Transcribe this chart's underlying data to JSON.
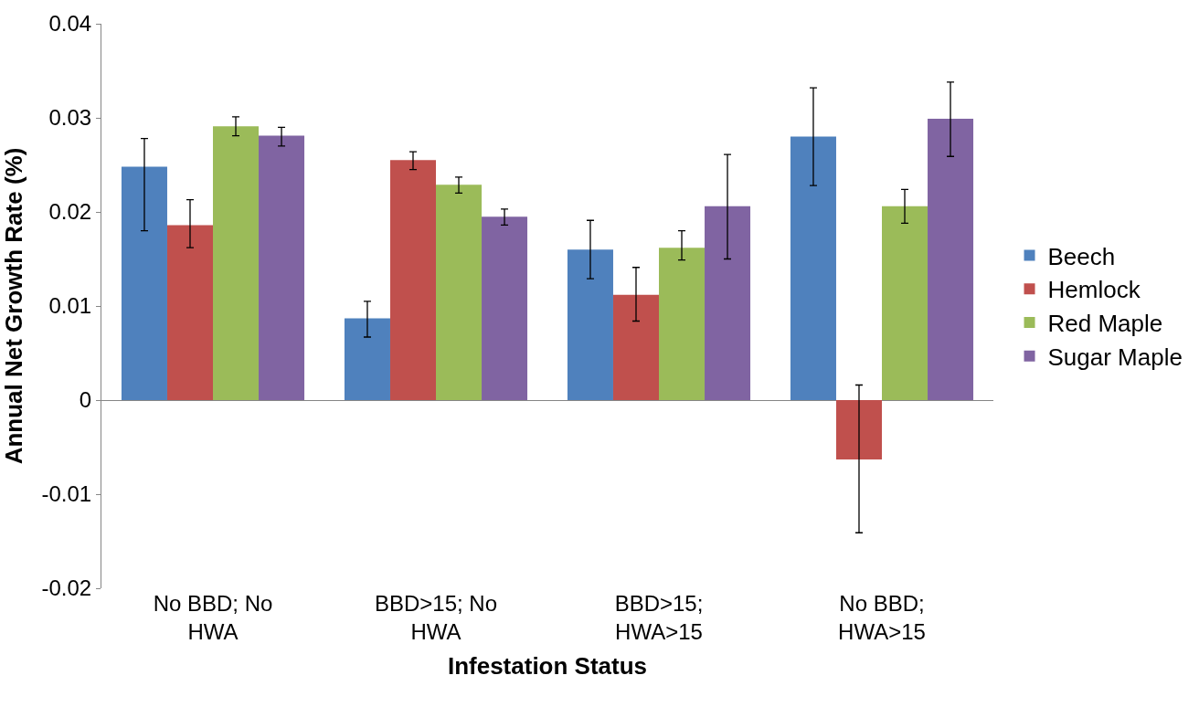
{
  "chart_data": {
    "type": "bar",
    "xlabel": "Infestation Status",
    "ylabel": "Annual Net Growth Rate (%)",
    "categories": [
      "No BBD; No\nHWA",
      "BBD>15; No\nHWA",
      "BBD>15;\nHWA>15",
      "No BBD;\nHWA>15"
    ],
    "series": [
      {
        "name": "Beech",
        "color": "#4f81bd",
        "values": [
          0.0248,
          0.0087,
          0.016,
          0.028
        ],
        "errors": [
          [
            0.018,
            0.0278
          ],
          [
            0.0067,
            0.0105
          ],
          [
            0.0129,
            0.0191
          ],
          [
            0.0228,
            0.0332
          ]
        ]
      },
      {
        "name": "Hemlock",
        "color": "#c0504d",
        "values": [
          0.0186,
          0.0255,
          0.0112,
          -0.0063
        ],
        "errors": [
          [
            0.0162,
            0.0213
          ],
          [
            0.0245,
            0.0264
          ],
          [
            0.0084,
            0.0141
          ],
          [
            -0.0141,
            0.0016
          ]
        ]
      },
      {
        "name": "Red Maple",
        "color": "#9bbb59",
        "values": [
          0.0291,
          0.0229,
          0.0162,
          0.0206
        ],
        "errors": [
          [
            0.0281,
            0.0301
          ],
          [
            0.022,
            0.0237
          ],
          [
            0.0149,
            0.018
          ],
          [
            0.0188,
            0.0224
          ]
        ]
      },
      {
        "name": "Sugar Maple",
        "color": "#8064a2",
        "values": [
          0.0281,
          0.0195,
          0.0206,
          0.0299
        ],
        "errors": [
          [
            0.027,
            0.029
          ],
          [
            0.0186,
            0.0203
          ],
          [
            0.015,
            0.0261
          ],
          [
            0.0259,
            0.0338
          ]
        ]
      }
    ],
    "ylim": [
      -0.02,
      0.04
    ],
    "yticks": [
      -0.02,
      -0.01,
      0,
      0.01,
      0.02,
      0.03,
      0.04
    ],
    "legend": "right"
  }
}
